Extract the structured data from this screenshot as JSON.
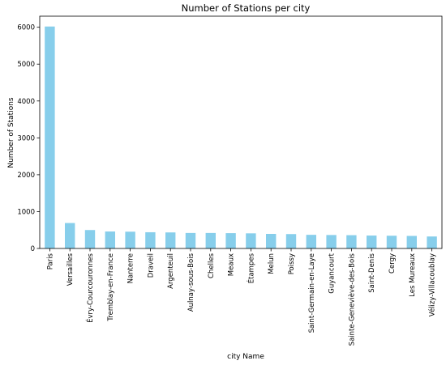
{
  "chart_data": {
    "type": "bar",
    "title": "Number of Stations per city",
    "xlabel": "city Name",
    "ylabel": "Number of Stations",
    "ylim": [
      0,
      6300
    ],
    "yticks": [
      0,
      1000,
      2000,
      3000,
      4000,
      5000,
      6000
    ],
    "grid": false,
    "legend": "none",
    "color": "#87ceeb",
    "categories": [
      "Paris",
      "Versailles",
      "Évry-Courcouronnes",
      "Tremblay-en-France",
      "Nanterre",
      "Draveil",
      "Argenteuil",
      "Aulnay-sous-Bois",
      "Chelles",
      "Meaux",
      "Étampes",
      "Melun",
      "Poissy",
      "Saint-Germain-en-Laye",
      "Guyancourt",
      "Sainte-Geneviève-des-Bois",
      "Saint-Denis",
      "Cergy",
      "Les Mureaux",
      "Vélizy-Villacoublay"
    ],
    "values": [
      6020,
      690,
      500,
      460,
      455,
      440,
      435,
      420,
      420,
      415,
      410,
      395,
      390,
      370,
      365,
      360,
      350,
      345,
      340,
      325
    ]
  }
}
